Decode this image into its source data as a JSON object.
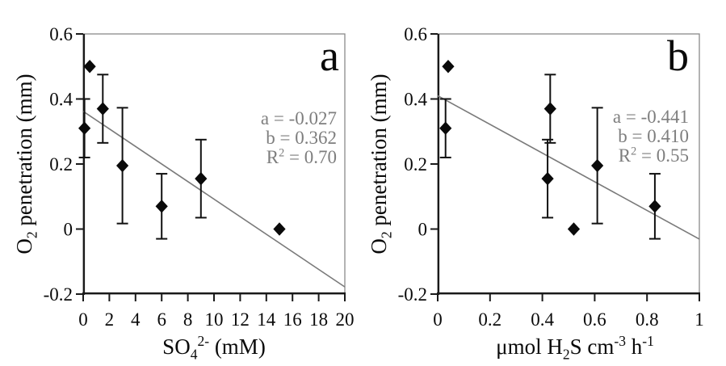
{
  "figure": {
    "background": "#ffffff"
  },
  "colors": {
    "marker": "#0a0a0a",
    "error_bar": "#111111",
    "axis": "#1a1a1a",
    "frame": "#8a8a8a",
    "regression_line": "#7a7a7a",
    "annotation_text": "#7e7e7e",
    "tick_label": "#0a0a0a"
  },
  "chart_data": [
    {
      "type": "scatter",
      "panel_label": "a",
      "xlabel_segments": [
        {
          "t": "SO"
        },
        {
          "t": "4",
          "style": "sub"
        },
        {
          "t": "2-",
          "style": "sup"
        },
        {
          "t": " (mM)"
        }
      ],
      "ylabel_segments": [
        {
          "t": "O"
        },
        {
          "t": "2",
          "style": "sub"
        },
        {
          "t": " penetration (mm)"
        }
      ],
      "xlim": [
        0,
        20
      ],
      "ylim": [
        -0.2,
        0.6
      ],
      "xtick_values": [
        0,
        2,
        4,
        6,
        8,
        10,
        12,
        14,
        16,
        18,
        20
      ],
      "xtick_labels": [
        "0",
        "2",
        "4",
        "6",
        "8",
        "10",
        "12",
        "14",
        "16",
        "18",
        "20"
      ],
      "ytick_values": [
        -0.2,
        0,
        0.2,
        0.4,
        0.6
      ],
      "ytick_labels": [
        "-0.2",
        "0",
        "0.2",
        "0.4",
        "0.6"
      ],
      "points": [
        {
          "x": 0.1,
          "y": 0.31,
          "err": 0.09
        },
        {
          "x": 0.5,
          "y": 0.5,
          "err": null
        },
        {
          "x": 1.5,
          "y": 0.37,
          "err": 0.105
        },
        {
          "x": 3.0,
          "y": 0.195,
          "err": 0.178
        },
        {
          "x": 6.0,
          "y": 0.07,
          "err": 0.1
        },
        {
          "x": 9.0,
          "y": 0.155,
          "err": 0.12
        },
        {
          "x": 15.0,
          "y": 0.0,
          "err": null
        }
      ],
      "fit": {
        "a": -0.027,
        "b": 0.362,
        "r2": "0.70"
      },
      "annotation_lines": [
        [
          {
            "t": "a = -0.027"
          }
        ],
        [
          {
            "t": "b = 0.362"
          }
        ],
        [
          {
            "t": "R"
          },
          {
            "t": "2",
            "style": "sup"
          },
          {
            "t": " = 0.70"
          }
        ]
      ]
    },
    {
      "type": "scatter",
      "panel_label": "b",
      "xlabel_segments": [
        {
          "t": "μmol H"
        },
        {
          "t": "2",
          "style": "sub"
        },
        {
          "t": "S cm"
        },
        {
          "t": "-3",
          "style": "sup"
        },
        {
          "t": " h"
        },
        {
          "t": "-1",
          "style": "sup"
        }
      ],
      "ylabel_segments": [
        {
          "t": "O"
        },
        {
          "t": "2",
          "style": "sub"
        },
        {
          "t": " penetration (mm)"
        }
      ],
      "xlim": [
        0,
        1
      ],
      "ylim": [
        -0.2,
        0.6
      ],
      "xtick_values": [
        0,
        0.2,
        0.4,
        0.6,
        0.8,
        1
      ],
      "xtick_labels": [
        "0",
        "0.2",
        "0.4",
        "0.6",
        "0.8",
        "1"
      ],
      "ytick_values": [
        -0.2,
        0,
        0.2,
        0.4,
        0.6
      ],
      "ytick_labels": [
        "-0.2",
        "0",
        "0.2",
        "0.4",
        "0.6"
      ],
      "points": [
        {
          "x": 0.04,
          "y": 0.5,
          "err": null
        },
        {
          "x": 0.03,
          "y": 0.31,
          "err": 0.09
        },
        {
          "x": 0.43,
          "y": 0.37,
          "err": 0.105
        },
        {
          "x": 0.42,
          "y": 0.155,
          "err": 0.12
        },
        {
          "x": 0.52,
          "y": 0.0,
          "err": null
        },
        {
          "x": 0.61,
          "y": 0.195,
          "err": 0.178
        },
        {
          "x": 0.83,
          "y": 0.07,
          "err": 0.1
        }
      ],
      "fit": {
        "a": -0.441,
        "b": 0.41,
        "r2": "0.55"
      },
      "annotation_lines": [
        [
          {
            "t": "a = -0.441"
          }
        ],
        [
          {
            "t": "b = 0.410"
          }
        ],
        [
          {
            "t": "R"
          },
          {
            "t": "2",
            "style": "sup"
          },
          {
            "t": " = 0.55"
          }
        ]
      ]
    }
  ]
}
